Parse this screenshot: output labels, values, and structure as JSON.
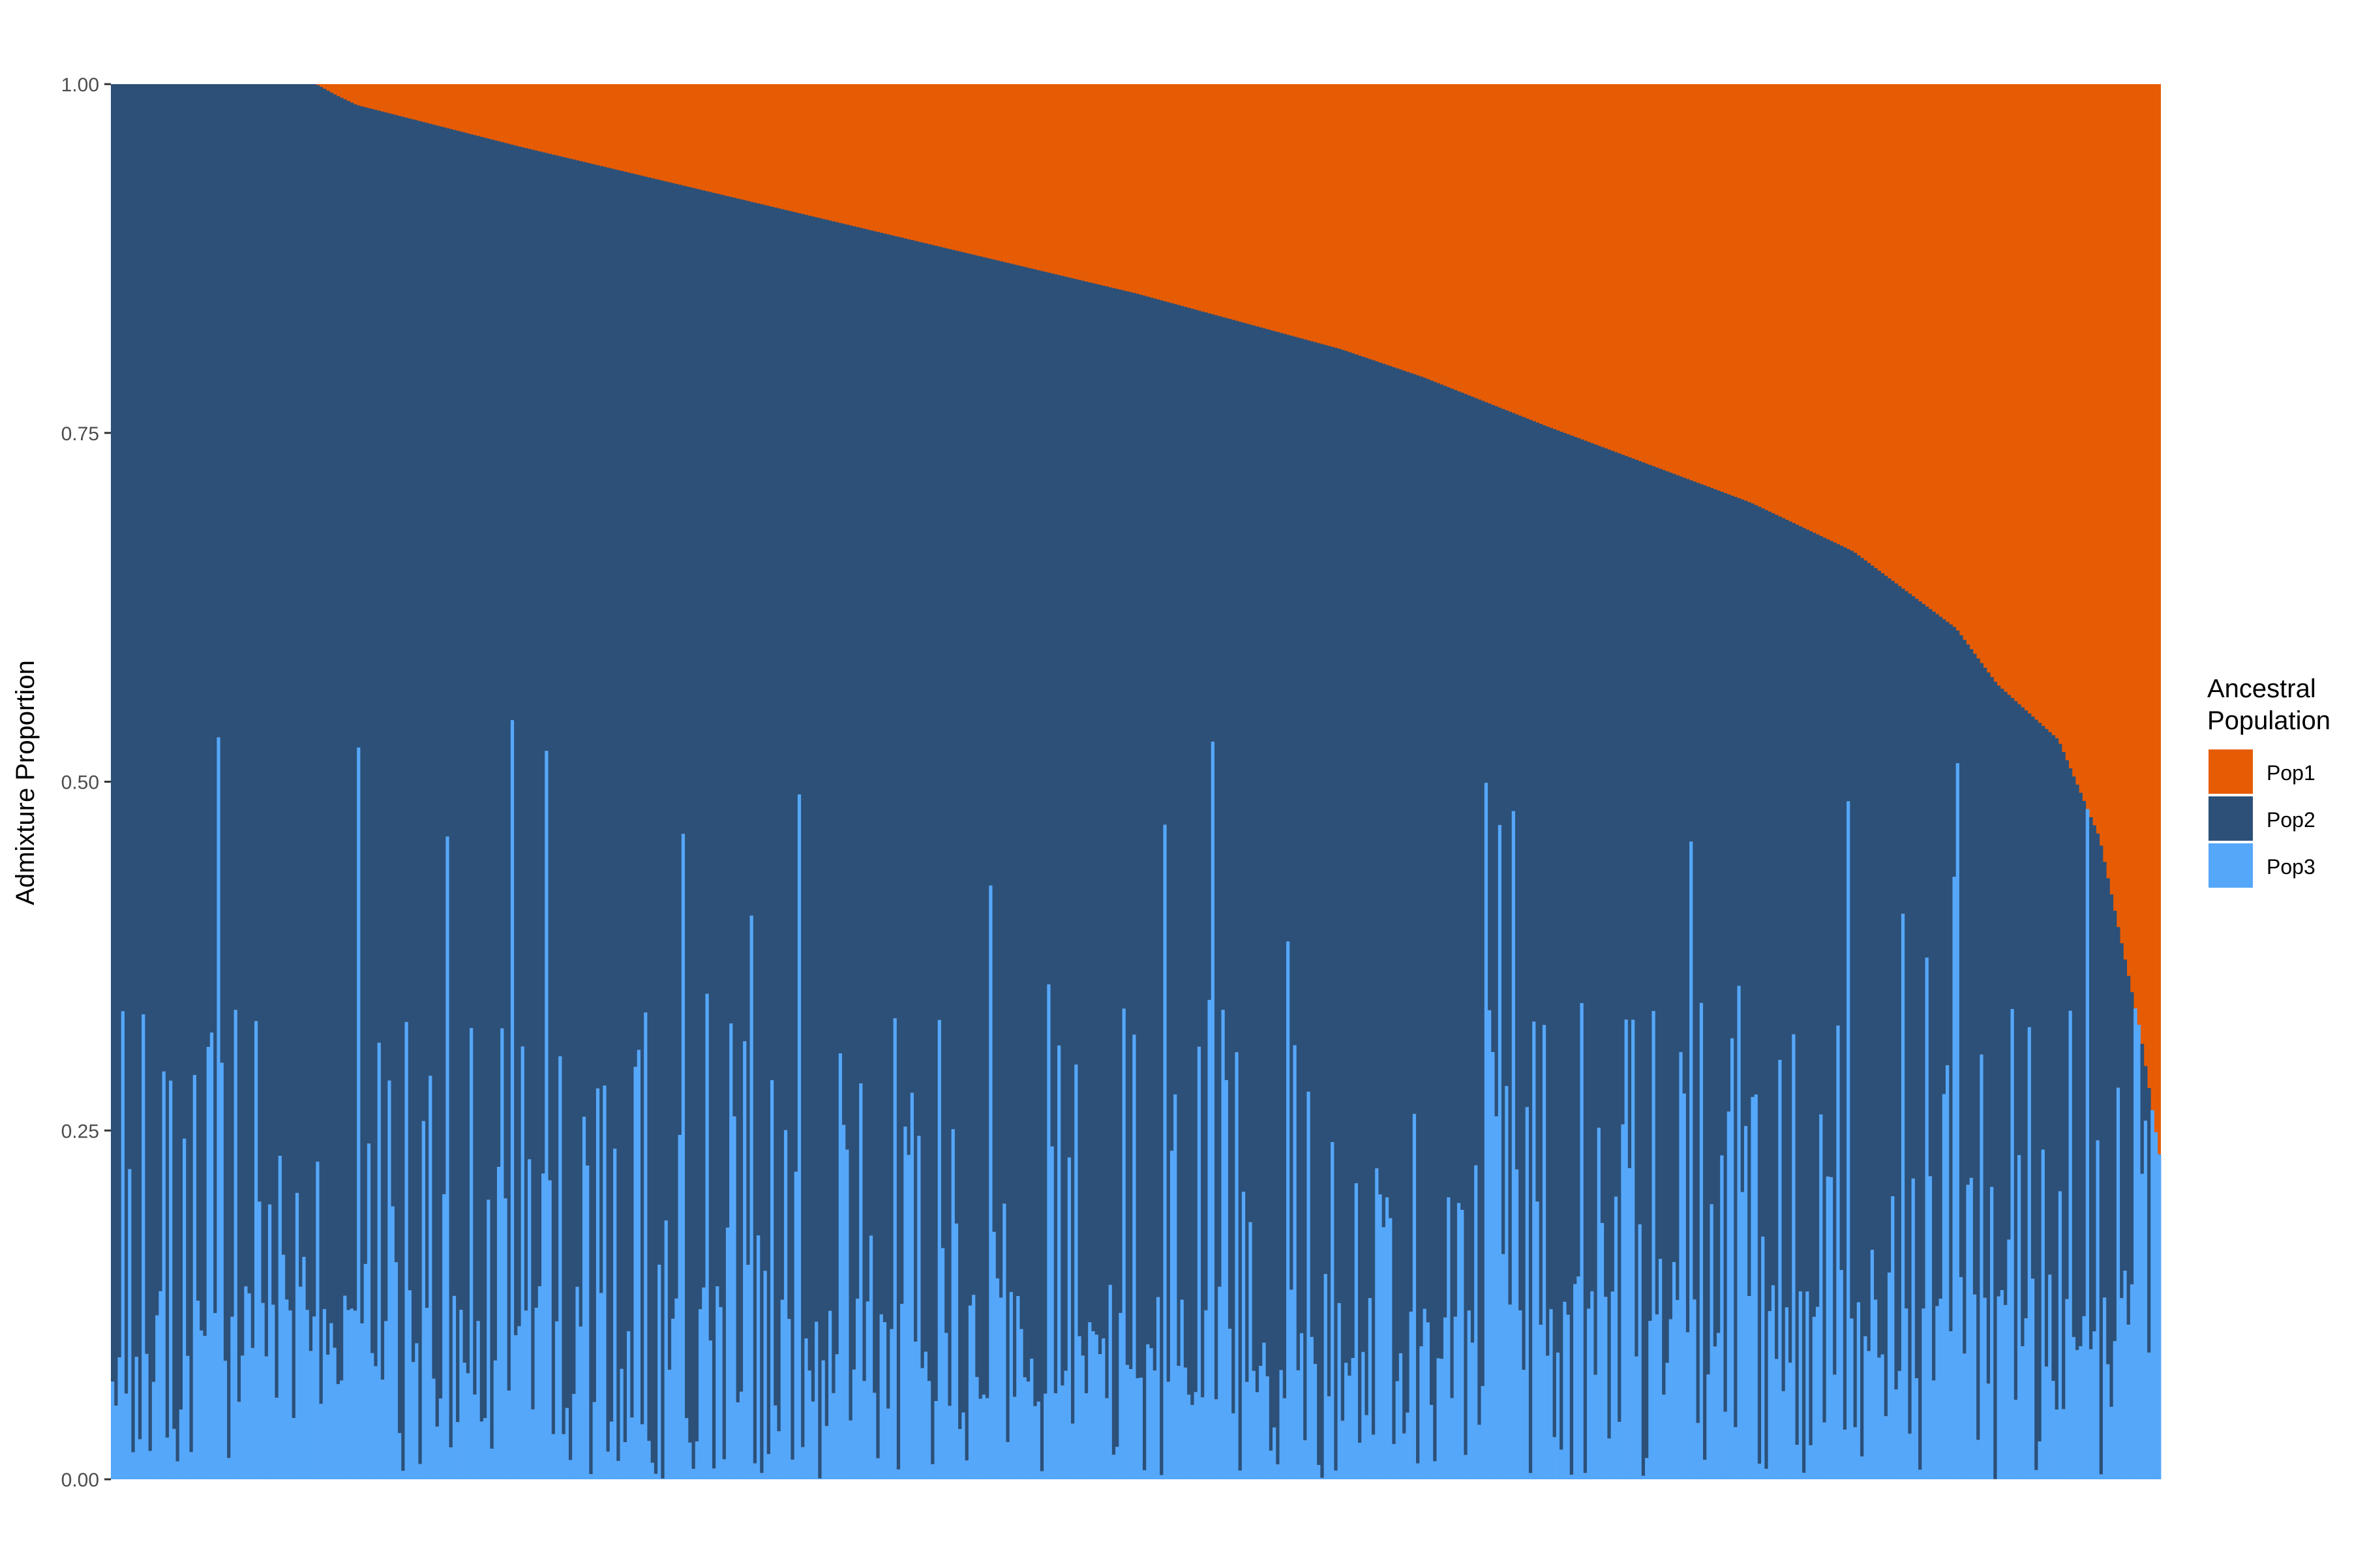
{
  "chart_data": {
    "type": "bar",
    "stacked": true,
    "orientation": "vertical",
    "n_bars": 600,
    "ylabel": "Admixture Proportion",
    "xlabel": "",
    "ylim": [
      0,
      1
    ],
    "yticks": [
      0.0,
      0.25,
      0.5,
      0.75,
      1.0
    ],
    "ytick_labels": [
      "0.00",
      "0.25",
      "0.50",
      "0.75",
      "1.00"
    ],
    "grid": false,
    "sort": "descending by Pop1 boundary (Pop2 + Pop3)",
    "legend": {
      "title": "Ancestral\nPopulation",
      "placement": "right"
    },
    "series": [
      {
        "name": "Pop1",
        "color": "#E65C05"
      },
      {
        "name": "Pop2",
        "color": "#2C5078"
      },
      {
        "name": "Pop3",
        "color": "#55A7FA"
      }
    ],
    "boundary_profile": {
      "description": "Cumulative Pop2+Pop3 (top of dark blue) at fractional position along the x axis; Pop1 fills the remainder to 1.0",
      "positions": [
        0.0,
        0.1,
        0.11,
        0.12,
        0.2,
        0.3,
        0.4,
        0.5,
        0.6,
        0.64,
        0.7,
        0.8,
        0.85,
        0.9,
        0.92,
        0.95,
        0.97,
        0.98,
        0.99,
        1.0
      ],
      "values": [
        1.0,
        1.0,
        0.992,
        0.985,
        0.955,
        0.92,
        0.885,
        0.85,
        0.81,
        0.79,
        0.755,
        0.7,
        0.665,
        0.61,
        0.57,
        0.53,
        0.46,
        0.39,
        0.32,
        0.225
      ]
    },
    "pop3_profile": {
      "description": "Typical Pop3 proportion (light blue, bottom) per sample; values vary sample-to-sample roughly within this range",
      "typical_min": 0.0,
      "typical_max": 0.45,
      "max_observed": 0.58
    }
  },
  "legend": {
    "title_line1": "Ancestral",
    "title_line2": "Population",
    "items": [
      {
        "label": "Pop1",
        "color": "#E65C05"
      },
      {
        "label": "Pop2",
        "color": "#2C5078"
      },
      {
        "label": "Pop3",
        "color": "#55A7FA"
      }
    ]
  },
  "axis": {
    "ylabel": "Admixture Proportion",
    "ticks": [
      "0.00",
      "0.25",
      "0.50",
      "0.75",
      "1.00"
    ]
  }
}
